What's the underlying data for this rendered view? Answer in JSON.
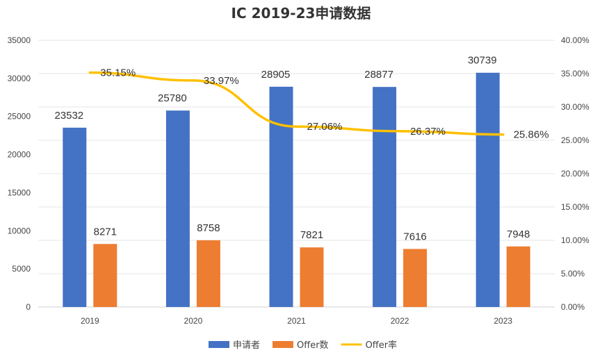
{
  "chart_data": {
    "type": "bar",
    "title": "IC 2019-23申请数据",
    "categories": [
      "2019",
      "2020",
      "2021",
      "2022",
      "2023"
    ],
    "series": [
      {
        "name": "申请者",
        "type": "bar",
        "axis": "left",
        "color": "#4472C4",
        "values": [
          23532,
          25780,
          28905,
          28877,
          30739
        ]
      },
      {
        "name": "Offer数",
        "type": "bar",
        "axis": "left",
        "color": "#ED7D31",
        "values": [
          8271,
          8758,
          7821,
          7616,
          7948
        ]
      },
      {
        "name": "Offer率",
        "type": "line",
        "axis": "right",
        "color": "#FFC000",
        "values": [
          35.15,
          33.97,
          27.06,
          26.37,
          25.86
        ],
        "labels": [
          "35.15%",
          "33.97%",
          "27.06%",
          "26.37%",
          "25.86%"
        ]
      }
    ],
    "ylim": [
      0,
      35000
    ],
    "yticks": [
      "0",
      "5000",
      "10000",
      "15000",
      "20000",
      "25000",
      "30000",
      "35000"
    ],
    "y2lim": [
      0,
      40
    ],
    "y2ticks": [
      "0.00%",
      "5.00%",
      "10.00%",
      "15.00%",
      "20.00%",
      "25.00%",
      "30.00%",
      "35.00%",
      "40.00%"
    ],
    "grid": true,
    "legend": "bottom"
  }
}
